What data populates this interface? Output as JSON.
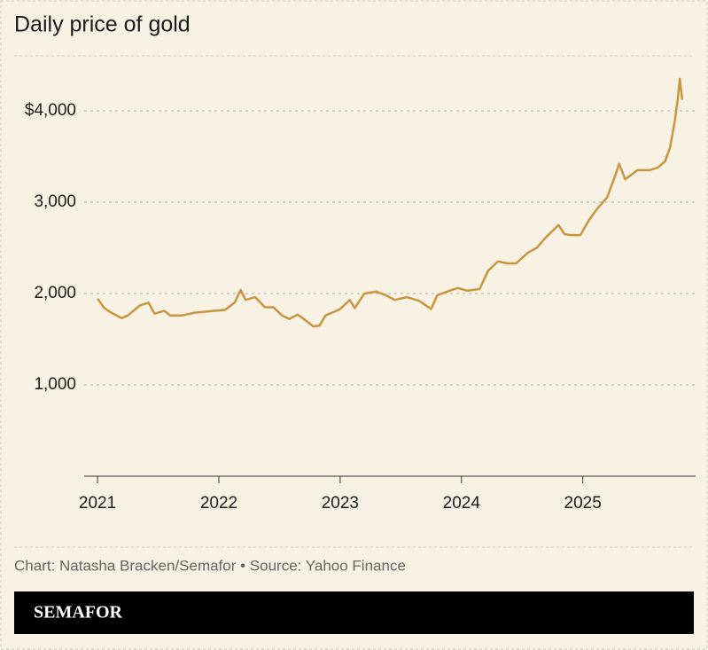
{
  "chart_data": {
    "type": "line",
    "title": "Daily price of gold",
    "x": [
      2021.0,
      2021.05,
      2021.1,
      2021.2,
      2021.25,
      2021.35,
      2021.42,
      2021.47,
      2021.55,
      2021.6,
      2021.7,
      2021.8,
      2021.88,
      2021.95,
      2022.05,
      2022.13,
      2022.18,
      2022.22,
      2022.3,
      2022.38,
      2022.45,
      2022.52,
      2022.58,
      2022.65,
      2022.72,
      2022.78,
      2022.83,
      2022.88,
      2022.95,
      2023.0,
      2023.08,
      2023.12,
      2023.2,
      2023.3,
      2023.38,
      2023.45,
      2023.55,
      2023.65,
      2023.75,
      2023.8,
      2023.9,
      2023.97,
      2024.05,
      2024.15,
      2024.22,
      2024.3,
      2024.38,
      2024.45,
      2024.55,
      2024.62,
      2024.7,
      2024.8,
      2024.85,
      2024.9,
      2024.98,
      2025.05,
      2025.12,
      2025.2,
      2025.27,
      2025.3,
      2025.35,
      2025.45,
      2025.55,
      2025.62,
      2025.68,
      2025.72,
      2025.76,
      2025.78,
      2025.8,
      2025.82
    ],
    "y": [
      1945,
      1850,
      1800,
      1730,
      1760,
      1870,
      1900,
      1780,
      1810,
      1760,
      1760,
      1790,
      1800,
      1810,
      1820,
      1900,
      2040,
      1930,
      1960,
      1850,
      1850,
      1760,
      1720,
      1770,
      1700,
      1640,
      1650,
      1760,
      1800,
      1830,
      1930,
      1840,
      2000,
      2020,
      1980,
      1930,
      1960,
      1920,
      1830,
      1980,
      2030,
      2060,
      2030,
      2050,
      2250,
      2350,
      2330,
      2330,
      2450,
      2500,
      2620,
      2750,
      2650,
      2640,
      2640,
      2800,
      2930,
      3050,
      3300,
      3420,
      3250,
      3350,
      3350,
      3380,
      3450,
      3600,
      3900,
      4100,
      4350,
      4120
    ],
    "color": "#c9963f",
    "xlim": [
      2020.89,
      2025.93
    ],
    "xticks": [
      2021,
      2022,
      2023,
      2024,
      2025
    ],
    "ylim": [
      0,
      4500
    ],
    "yticks": [
      {
        "value": 1000,
        "label": "1,000"
      },
      {
        "value": 2000,
        "label": "2,000"
      },
      {
        "value": 3000,
        "label": "3,000"
      },
      {
        "value": 4000,
        "label": "$4,000"
      }
    ],
    "grid": true,
    "source": "Chart: Natasha Bracken/Semafor • Source: Yahoo Finance",
    "logo": "SEMAFOR"
  }
}
